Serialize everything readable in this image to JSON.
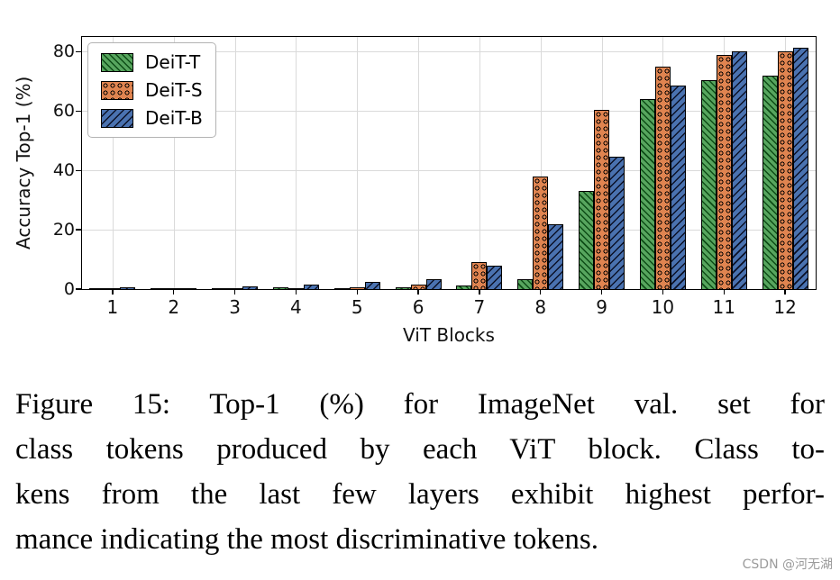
{
  "chart_data": {
    "type": "bar",
    "title": "",
    "xlabel": "ViT Blocks",
    "ylabel": "Accuracy Top-1 (%)",
    "categories": [
      "1",
      "2",
      "3",
      "4",
      "5",
      "6",
      "7",
      "8",
      "9",
      "10",
      "11",
      "12"
    ],
    "yticks": [
      0,
      20,
      40,
      60,
      80
    ],
    "ylim": [
      0,
      85
    ],
    "grid": true,
    "legend_position": "upper-left",
    "series": [
      {
        "name": "DeiT-T",
        "color": "#57a55e",
        "hatch": "//",
        "values": [
          0.4,
          0.3,
          0.4,
          0.5,
          0.4,
          0.6,
          1.2,
          3.2,
          33,
          64,
          70.5,
          72
        ]
      },
      {
        "name": "DeiT-S",
        "color": "#e08450",
        "hatch": "oo",
        "values": [
          0.4,
          0.3,
          0.4,
          0.4,
          0.7,
          1.6,
          9,
          38,
          60.5,
          75,
          79,
          80
        ]
      },
      {
        "name": "DeiT-B",
        "color": "#4a72b0",
        "hatch": "\\\\",
        "values": [
          0.6,
          0.4,
          0.9,
          1.4,
          2.3,
          3.3,
          8,
          22,
          44.5,
          68.5,
          80,
          81.5
        ]
      }
    ]
  },
  "caption": {
    "lines": [
      "Figure 15: Top-1 (%) for ImageNet val. set for",
      "class tokens produced by each ViT block. Class to-",
      "kens from the last few layers exhibit highest perfor-",
      "mance indicating the most discriminative tokens."
    ]
  },
  "watermark": {
    "text": "CSDN @河无湖"
  }
}
